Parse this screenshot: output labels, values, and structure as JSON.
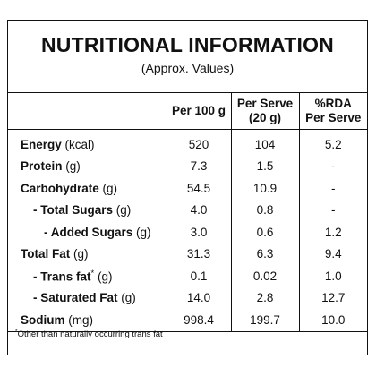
{
  "header": {
    "title": "NUTRITIONAL INFORMATION",
    "subtitle": "(Approx. Values)"
  },
  "table": {
    "columns": [
      [
        "Per 100 g"
      ],
      [
        "Per Serve",
        "(20 g)"
      ],
      [
        "%RDA",
        "Per Serve"
      ]
    ],
    "rows": [
      {
        "name": "Energy",
        "unit": "(kcal)",
        "values": [
          "520",
          "104",
          "5.2"
        ]
      },
      {
        "name": "Protein",
        "unit": "(g)",
        "values": [
          "7.3",
          "1.5",
          "-"
        ]
      },
      {
        "name": "Carbohydrate",
        "unit": "(g)",
        "values": [
          "54.5",
          "10.9",
          "-"
        ]
      },
      {
        "name": "- Total Sugars",
        "unit": "(g)",
        "values": [
          "4.0",
          "0.8",
          "-"
        ]
      },
      {
        "name": "- Added Sugars",
        "unit": "(g)",
        "values": [
          "3.0",
          "0.6",
          "1.2"
        ]
      },
      {
        "name": "Total Fat",
        "unit": "(g)",
        "values": [
          "31.3",
          "6.3",
          "9.4"
        ]
      },
      {
        "name": "- Trans fat",
        "mark": "*",
        "unit": "(g)",
        "values": [
          "0.1",
          "0.02",
          "1.0"
        ]
      },
      {
        "name": "- Saturated Fat",
        "unit": "(g)",
        "values": [
          "14.0",
          "2.8",
          "12.7"
        ]
      },
      {
        "name": "Sodium",
        "unit": "(mg)",
        "values": [
          "998.4",
          "199.7",
          "10.0"
        ]
      }
    ]
  },
  "footnote": {
    "mark": "*",
    "text": "Other than naturally occurring trans fat"
  }
}
